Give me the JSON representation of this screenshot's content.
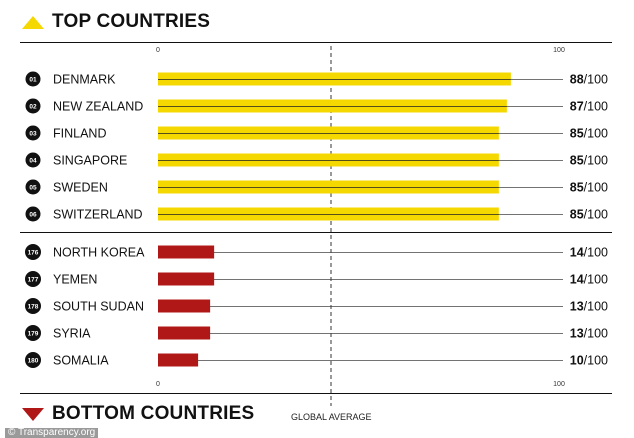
{
  "headings": {
    "top": "TOP COUNTRIES",
    "bottom": "BOTTOM COUNTRIES"
  },
  "global_average_label": "GLOBAL AVERAGE",
  "credit": "© Transparency.org",
  "colors": {
    "top_bar": "#f5d800",
    "bottom_bar": "#b01818",
    "text": "#111111"
  },
  "chart_data": {
    "type": "bar",
    "orientation": "horizontal",
    "xlim": [
      0,
      100
    ],
    "x_ticks": [
      "0",
      "100"
    ],
    "score_suffix": "/100",
    "groups": [
      {
        "name": "top",
        "rows": [
          {
            "rank": "01",
            "country": "DENMARK",
            "value": 88
          },
          {
            "rank": "02",
            "country": "NEW ZEALAND",
            "value": 87
          },
          {
            "rank": "03",
            "country": "FINLAND",
            "value": 85
          },
          {
            "rank": "04",
            "country": "SINGAPORE",
            "value": 85
          },
          {
            "rank": "05",
            "country": "SWEDEN",
            "value": 85
          },
          {
            "rank": "06",
            "country": "SWITZERLAND",
            "value": 85
          }
        ]
      },
      {
        "name": "bottom",
        "rows": [
          {
            "rank": "176",
            "country": "NORTH KOREA",
            "value": 14
          },
          {
            "rank": "177",
            "country": "YEMEN",
            "value": 14
          },
          {
            "rank": "178",
            "country": "SOUTH SUDAN",
            "value": 13
          },
          {
            "rank": "179",
            "country": "SYRIA",
            "value": 13
          },
          {
            "rank": "180",
            "country": "SOMALIA",
            "value": 10
          }
        ]
      }
    ]
  }
}
